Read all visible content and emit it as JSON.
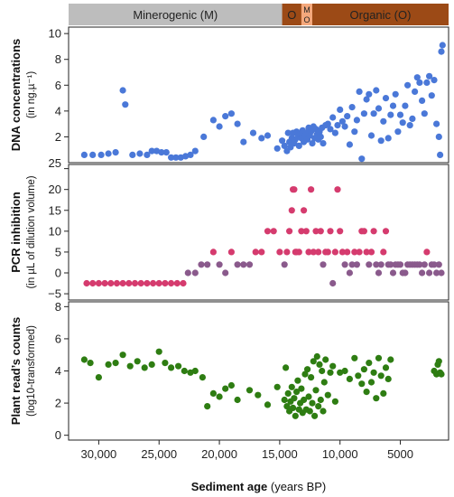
{
  "bands": [
    {
      "label": "Minerogenic (M)",
      "from": 32500,
      "to": 14800,
      "color": "#bdbdbd",
      "text_color": "#222222"
    },
    {
      "label": "O",
      "from": 14800,
      "to": 13200,
      "color": "#9c4a16",
      "text_color": "#ffffff"
    },
    {
      "label": "M O",
      "from": 13200,
      "to": 12300,
      "color": "#f4a87c",
      "text_color": "#333333"
    },
    {
      "label": "Organic (O)",
      "from": 12300,
      "to": 1000,
      "color": "#9c4a16",
      "text_color": "#ffffff"
    }
  ],
  "xaxis": {
    "label_bold": "Sediment age",
    "label_rest": " (years BP)",
    "ticks": [
      30000,
      25000,
      20000,
      15000,
      10000,
      5000
    ],
    "tick_labels": [
      "30,000",
      "25,000",
      "20,000",
      "15,000",
      "10,000",
      "5000"
    ],
    "range": [
      32500,
      1000
    ]
  },
  "chart_data": [
    {
      "type": "scatter",
      "ylabel": "DNA concentrations",
      "ylabel2": "(in ng.µ⁻¹)",
      "ylim": [
        0,
        10.5
      ],
      "yticks": [
        2,
        4,
        6,
        8,
        10
      ],
      "extra_tick_label": "25",
      "color": "#4a78d8",
      "x": [
        31200,
        30500,
        29800,
        29200,
        28600,
        28000,
        27800,
        27200,
        26600,
        26000,
        25600,
        25200,
        24800,
        24400,
        24000,
        23600,
        23200,
        22800,
        22400,
        22000,
        21300,
        20500,
        20000,
        19500,
        19000,
        18500,
        18000,
        17200,
        16500,
        16000,
        15200,
        14800,
        14600,
        14400,
        14300,
        14200,
        14100,
        14000,
        13900,
        13800,
        13700,
        13600,
        13500,
        13400,
        13300,
        13200,
        13100,
        13000,
        12900,
        12800,
        12700,
        12600,
        12500,
        12400,
        12300,
        12200,
        12100,
        12000,
        11900,
        11800,
        11700,
        11600,
        11500,
        11400,
        11200,
        11000,
        10800,
        10600,
        10400,
        10200,
        10000,
        9800,
        9600,
        9400,
        9200,
        9000,
        8800,
        8600,
        8400,
        8200,
        8000,
        7800,
        7600,
        7400,
        7200,
        7000,
        6800,
        6600,
        6400,
        6200,
        6000,
        5800,
        5600,
        5400,
        5200,
        5000,
        4800,
        4600,
        4400,
        4200,
        4000,
        3800,
        3600,
        3400,
        3200,
        3000,
        2800,
        2600,
        2400,
        2200,
        2000,
        1800,
        1700,
        1600,
        1500
      ],
      "y": [
        0.6,
        0.6,
        0.6,
        0.7,
        0.8,
        5.6,
        4.5,
        0.6,
        0.7,
        0.6,
        0.9,
        0.9,
        0.8,
        0.8,
        0.4,
        0.4,
        0.4,
        0.5,
        0.6,
        0.9,
        2.0,
        3.3,
        2.8,
        3.6,
        3.8,
        3.0,
        1.6,
        2.3,
        1.9,
        2.1,
        1.1,
        1.7,
        1.3,
        0.9,
        2.3,
        1.6,
        1.2,
        1.9,
        2.3,
        1.5,
        1.8,
        2.4,
        2.0,
        1.3,
        2.2,
        1.9,
        2.5,
        1.6,
        2.1,
        2.3,
        1.8,
        2.7,
        2.1,
        2.4,
        1.5,
        2.8,
        1.9,
        2.6,
        2.2,
        1.8,
        2.4,
        2.0,
        2.7,
        1.5,
        2.9,
        3.0,
        2.6,
        3.5,
        2.3,
        2.9,
        4.1,
        3.2,
        2.8,
        3.6,
        1.4,
        4.3,
        2.4,
        3.3,
        5.5,
        0.3,
        3.8,
        4.9,
        5.3,
        2.1,
        3.8,
        5.6,
        4.2,
        1.7,
        3.2,
        5.0,
        1.9,
        3.7,
        4.4,
        5.3,
        2.4,
        3.7,
        3.1,
        4.4,
        6.0,
        2.9,
        3.4,
        5.5,
        6.6,
        6.2,
        4.8,
        3.8,
        6.2,
        6.7,
        5.2,
        6.4,
        3.0,
        2.0,
        0.6,
        8.6,
        9.1
      ]
    },
    {
      "type": "scatter",
      "ylabel": "PCR inhibition",
      "ylabel2": "(in µL of dilution volume)",
      "ylim": [
        -6.5,
        26
      ],
      "yticks": [
        -5,
        0,
        5,
        10,
        15,
        20,
        25
      ],
      "ytick_labels": [
        "−5",
        "0",
        "5",
        "10",
        "15",
        "20",
        ""
      ],
      "color": "#d53b6e",
      "fade_color": "#8a5a8c",
      "x": [
        31000,
        30500,
        30000,
        29500,
        29000,
        28500,
        28000,
        27500,
        27000,
        26500,
        26000,
        25500,
        25000,
        24500,
        24000,
        23500,
        23000,
        22600,
        22000,
        21500,
        21000,
        20500,
        20000,
        19500,
        19000,
        18500,
        18000,
        17500,
        17000,
        16500,
        16000,
        15500,
        15000,
        14600,
        14400,
        14200,
        14000,
        13900,
        13800,
        13700,
        13600,
        13400,
        13200,
        13000,
        12800,
        12600,
        12400,
        12200,
        12000,
        11800,
        11600,
        11400,
        11200,
        11000,
        10800,
        10600,
        10400,
        10200,
        10000,
        9800,
        9600,
        9400,
        9200,
        9000,
        8800,
        8600,
        8400,
        8200,
        8000,
        7800,
        7600,
        7400,
        7200,
        7000,
        6800,
        6600,
        6400,
        6200,
        6000,
        5800,
        5600,
        5400,
        5200,
        5000,
        4800,
        4600,
        4400,
        4200,
        4000,
        3800,
        3600,
        3400,
        3200,
        3000,
        2800,
        2600,
        2400,
        2200,
        2000,
        1800,
        1600
      ],
      "y": [
        -2.5,
        -2.5,
        -2.5,
        -2.5,
        -2.5,
        -2.5,
        -2.5,
        -2.5,
        -2.5,
        -2.5,
        -2.5,
        -2.5,
        -2.5,
        -2.5,
        -2.5,
        -2.5,
        -2.5,
        0,
        0,
        2,
        2,
        5,
        2,
        0,
        5,
        2,
        2,
        2,
        5,
        5,
        10,
        10,
        5,
        2,
        5,
        10,
        15,
        20,
        20,
        5,
        5,
        5,
        10,
        15,
        10,
        5,
        20,
        5,
        10,
        5,
        10,
        2,
        5,
        5,
        10,
        -2.5,
        5,
        20,
        10,
        5,
        2,
        5,
        0,
        2,
        5,
        2,
        5,
        10,
        10,
        5,
        2,
        5,
        10,
        2,
        0,
        2,
        5,
        10,
        2,
        2,
        0,
        2,
        2,
        2,
        0,
        0,
        2,
        2,
        2,
        2,
        2,
        2,
        0,
        2,
        5,
        0,
        2,
        2,
        0,
        2,
        0
      ],
      "faded_from": 22600
    },
    {
      "type": "scatter",
      "ylabel": "Plant read’s counts",
      "ylabel2": "(log10-transformed)",
      "ylim": [
        -0.3,
        8.3
      ],
      "yticks": [
        0,
        2,
        4,
        6,
        8
      ],
      "color": "#2e7d12",
      "x": [
        31200,
        30700,
        30000,
        29200,
        28600,
        28000,
        27400,
        26800,
        26200,
        25600,
        25000,
        24500,
        24000,
        23400,
        22900,
        22400,
        22000,
        21400,
        21000,
        20500,
        20000,
        19500,
        19000,
        18500,
        17500,
        16800,
        16000,
        15200,
        14600,
        14500,
        14400,
        14300,
        14200,
        14100,
        14000,
        13900,
        13800,
        13700,
        13600,
        13500,
        13400,
        13300,
        13200,
        13100,
        13000,
        12900,
        12800,
        12700,
        12600,
        12500,
        12400,
        12300,
        12200,
        12100,
        12000,
        11900,
        11800,
        11700,
        11600,
        11500,
        11400,
        11300,
        11200,
        11000,
        10800,
        10600,
        10400,
        10000,
        9600,
        9200,
        8800,
        8500,
        8200,
        8000,
        7800,
        7600,
        7400,
        7200,
        7000,
        6800,
        6600,
        6400,
        6200,
        6000,
        5800,
        2200,
        2000,
        1900,
        1800,
        1700,
        1600
      ],
      "y": [
        4.7,
        4.5,
        3.6,
        4.4,
        4.5,
        5.0,
        4.3,
        4.6,
        4.2,
        4.4,
        5.2,
        4.5,
        4.2,
        4.3,
        4.0,
        3.9,
        4.0,
        3.6,
        1.8,
        2.6,
        2.4,
        2.9,
        3.1,
        2.2,
        2.8,
        2.5,
        1.9,
        3.0,
        2.2,
        4.2,
        1.8,
        2.6,
        1.5,
        2.1,
        3.0,
        1.7,
        2.3,
        1.2,
        2.7,
        3.4,
        1.6,
        2.0,
        2.9,
        1.4,
        2.2,
        3.8,
        1.6,
        4.1,
        2.4,
        1.5,
        3.6,
        2.0,
        4.6,
        1.2,
        2.8,
        4.9,
        1.8,
        4.4,
        2.2,
        4.0,
        1.5,
        3.3,
        4.7,
        2.5,
        3.9,
        4.3,
        2.1,
        3.9,
        4.0,
        3.5,
        4.8,
        3.7,
        3.2,
        4.1,
        2.7,
        4.5,
        3.3,
        3.9,
        2.3,
        4.8,
        3.7,
        2.6,
        4.2,
        3.5,
        4.7,
        4.0,
        3.8,
        4.4,
        4.6,
        3.9,
        3.8
      ]
    }
  ]
}
